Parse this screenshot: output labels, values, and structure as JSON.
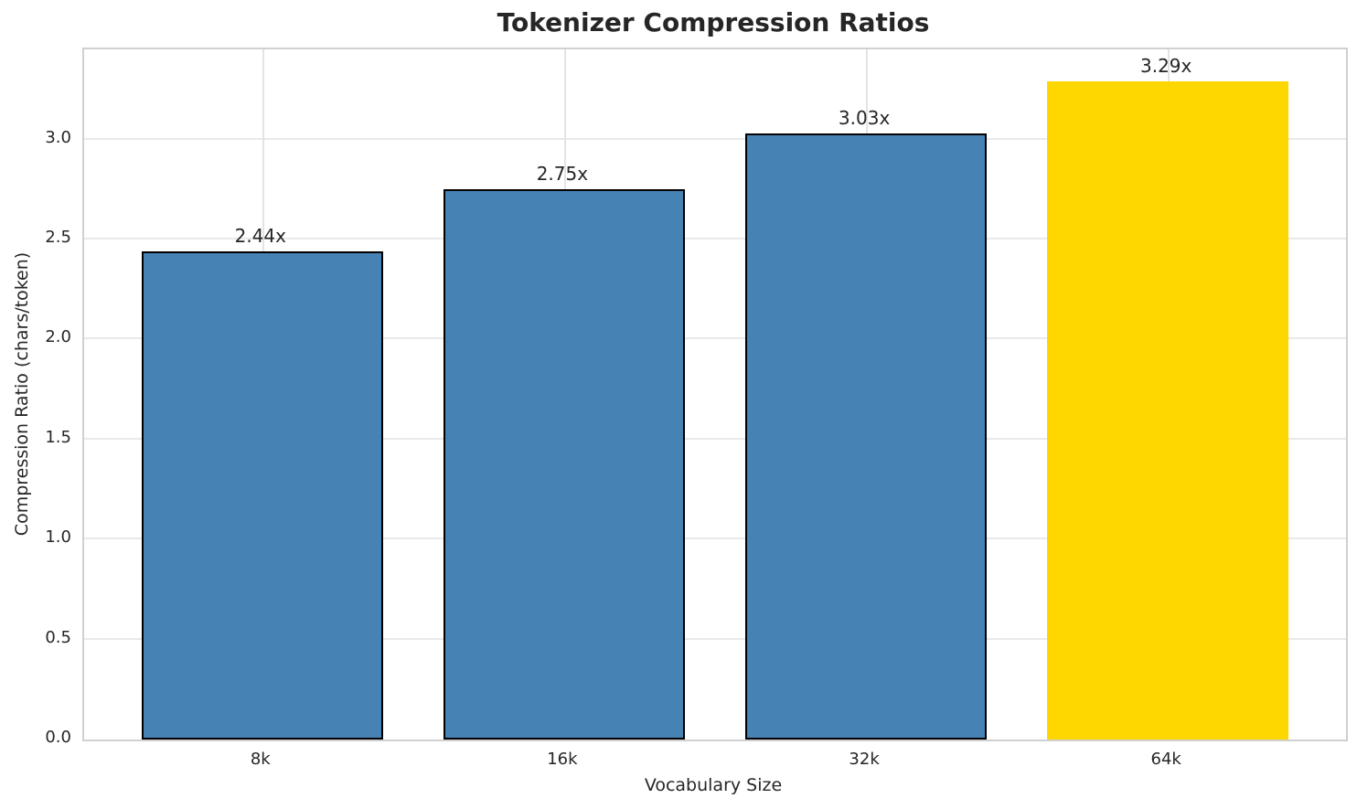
{
  "title": "Tokenizer Compression Ratios",
  "chart_data": {
    "type": "bar",
    "title": "Tokenizer Compression Ratios",
    "xlabel": "Vocabulary Size",
    "ylabel": "Compression Ratio (chars/token)",
    "categories": [
      "8k",
      "16k",
      "32k",
      "64k"
    ],
    "values": [
      2.44,
      2.75,
      3.03,
      3.29
    ],
    "bar_labels": [
      "2.44x",
      "2.75x",
      "3.03x",
      "3.29x"
    ],
    "bar_colors": [
      "#4682B4",
      "#4682B4",
      "#4682B4",
      "#FFD700"
    ],
    "bar_edge_colors": [
      "#000000",
      "#000000",
      "#000000",
      "none"
    ],
    "highlight_index": 3,
    "ylim": [
      0,
      3.45
    ],
    "yticks": [
      0.0,
      0.5,
      1.0,
      1.5,
      2.0,
      2.5,
      3.0
    ],
    "ytick_labels": [
      "0.0",
      "0.5",
      "1.0",
      "1.5",
      "2.0",
      "2.5",
      "3.0"
    ],
    "grid": true,
    "legend": false
  },
  "colors": {
    "steelblue": "#4682B4",
    "gold": "#FFD700",
    "grid": "#e6e6e6",
    "spine": "#d0d0d0",
    "text": "#262626"
  }
}
